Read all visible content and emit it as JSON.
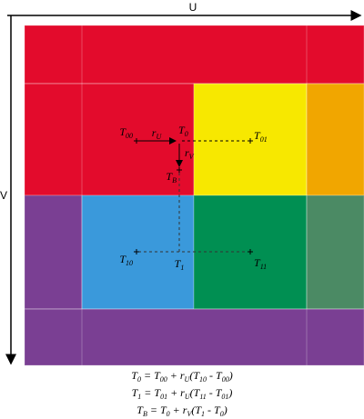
{
  "axes": {
    "u": "U",
    "v": "V"
  },
  "points": [
    {
      "text": "T",
      "sub": "00"
    },
    {
      "text": "T",
      "sub": "01"
    },
    {
      "text": "T",
      "sub": "10"
    },
    {
      "text": "T",
      "sub": "11"
    },
    {
      "text": "T",
      "sub": "0"
    },
    {
      "text": "T",
      "sub": "1"
    },
    {
      "text": "T",
      "sub": "B"
    }
  ],
  "weights": [
    {
      "text": "r",
      "sub": "U"
    },
    {
      "text": "r",
      "sub": "V"
    }
  ],
  "equations": [
    [
      {
        "text": "T",
        "sub": "0"
      },
      {
        "text": " = "
      },
      {
        "text": "T",
        "sub": "00"
      },
      {
        "text": " + "
      },
      {
        "text": "r",
        "sub": "U"
      },
      {
        "text": "("
      },
      {
        "text": "T",
        "sub": "10"
      },
      {
        "text": " - "
      },
      {
        "text": "T",
        "sub": "00"
      },
      {
        "text": ")"
      }
    ],
    [
      {
        "text": "T",
        "sub": "1"
      },
      {
        "text": " = "
      },
      {
        "text": "T",
        "sub": "01"
      },
      {
        "text": " + "
      },
      {
        "text": "r",
        "sub": "U"
      },
      {
        "text": "("
      },
      {
        "text": "T",
        "sub": "11"
      },
      {
        "text": " - "
      },
      {
        "text": "T",
        "sub": "01"
      },
      {
        "text": ")"
      }
    ],
    [
      {
        "text": "T",
        "sub": "B"
      },
      {
        "text": " = "
      },
      {
        "text": "T",
        "sub": "0"
      },
      {
        "text": " + "
      },
      {
        "text": "r",
        "sub": "V"
      },
      {
        "text": "("
      },
      {
        "text": "T",
        "sub": "1"
      },
      {
        "text": " - "
      },
      {
        "text": "T",
        "sub": "0"
      },
      {
        "text": ")"
      }
    ]
  ]
}
